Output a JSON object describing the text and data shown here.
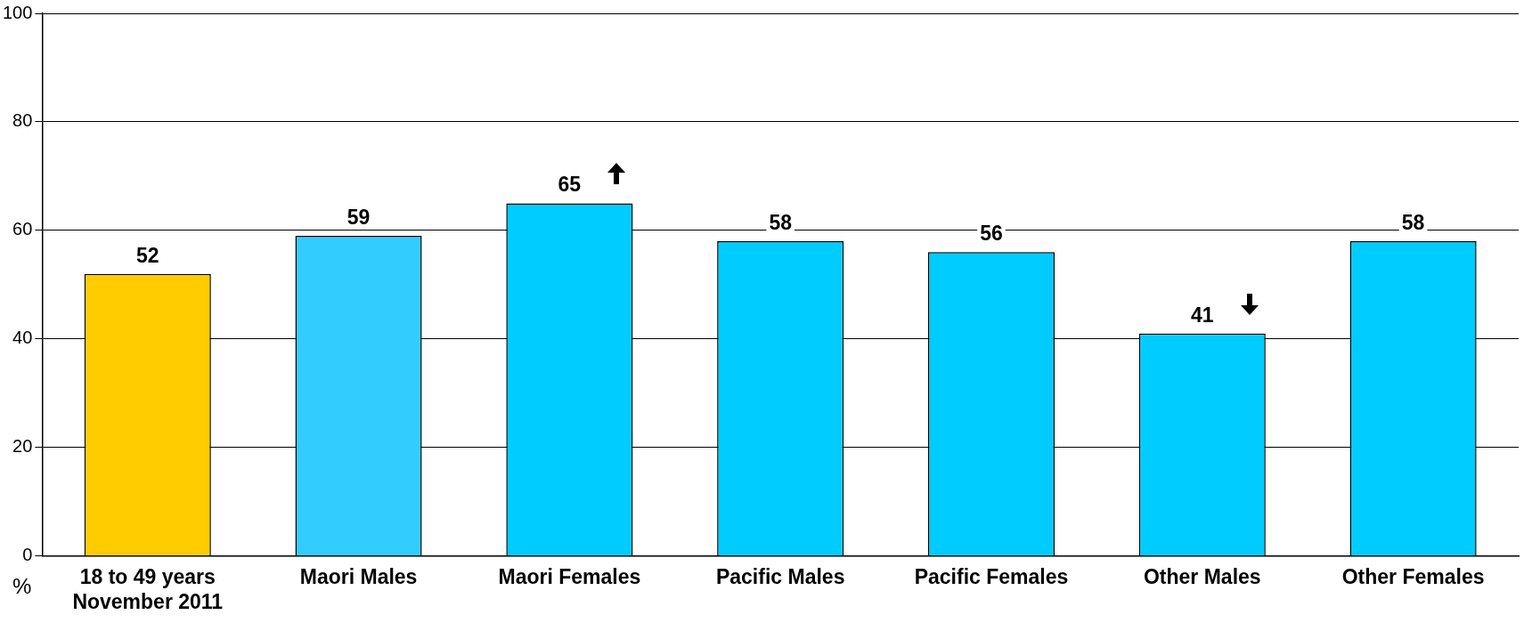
{
  "chart_data": {
    "type": "bar",
    "ylabel": "%",
    "categories": [
      "18 to 49 years November 2011",
      "Maori Males",
      "Maori Females",
      "Pacific Males",
      "Pacific Females",
      "Other Males",
      "Other Females"
    ],
    "values": [
      52,
      59,
      65,
      58,
      56,
      41,
      58
    ],
    "colors": [
      "#ffcc00",
      "#33ccff",
      "#00ccff",
      "#00ccff",
      "#00ccff",
      "#00ccff",
      "#00ccff"
    ],
    "ylim": [
      0,
      100
    ],
    "yticks": [
      0,
      20,
      40,
      60,
      80,
      100
    ],
    "grid": "y",
    "data_labels": true,
    "legend": false
  }
}
